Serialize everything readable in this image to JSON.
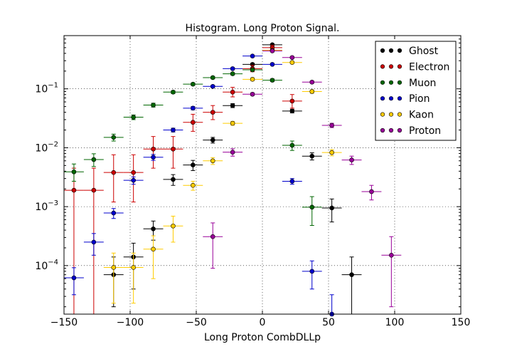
{
  "chart_data": {
    "type": "scatter",
    "title": "Histogram. Long Proton Signal.",
    "xlabel": "Long Proton CombDLLp",
    "ylabel": "",
    "xlim": [
      -150,
      150
    ],
    "ylim": [
      1.5e-05,
      0.8
    ],
    "yscale": "log",
    "grid": true,
    "legend_position": "top-right",
    "x_ticks": [
      {
        "value": -150,
        "label": "−150"
      },
      {
        "value": -100,
        "label": "−100"
      },
      {
        "value": -50,
        "label": "−50"
      },
      {
        "value": 0,
        "label": "0"
      },
      {
        "value": 50,
        "label": "50"
      },
      {
        "value": 100,
        "label": "100"
      },
      {
        "value": 150,
        "label": "150"
      }
    ],
    "y_ticks": [
      {
        "value": 0.0001,
        "base": "10",
        "exp": "−4"
      },
      {
        "value": 0.001,
        "base": "10",
        "exp": "−3"
      },
      {
        "value": 0.01,
        "base": "10",
        "exp": "−2"
      },
      {
        "value": 0.1,
        "base": "10",
        "exp": "−1"
      }
    ],
    "bin_half_width": 7.5,
    "series": [
      {
        "name": "Ghost",
        "color": "#000000",
        "x": [
          -112.5,
          -97.5,
          -82.5,
          -67.5,
          -52.5,
          -37.5,
          -22.5,
          -7.5,
          7.5,
          22.5,
          37.5,
          52.5,
          67.5
        ],
        "y": [
          7e-05,
          0.00014,
          0.00042,
          0.0029,
          0.0051,
          0.0135,
          0.052,
          0.26,
          0.56,
          0.042,
          0.0072,
          0.00095,
          7e-05
        ],
        "err_low": [
          5e-05,
          0.0001,
          0.00015,
          0.0006,
          0.001,
          0.0015,
          0.004,
          0.01,
          0.02,
          0.003,
          0.001,
          0.0004,
          6e-05
        ],
        "err_high": [
          7e-05,
          0.0001,
          0.00015,
          0.0006,
          0.001,
          0.0015,
          0.004,
          0.01,
          0.02,
          0.003,
          0.001,
          0.0004,
          7e-05
        ]
      },
      {
        "name": "Electron",
        "color": "#cc0000",
        "x": [
          -142.5,
          -127.5,
          -112.5,
          -97.5,
          -82.5,
          -67.5,
          -52.5,
          -37.5,
          -22.5,
          -7.5,
          7.5,
          22.5
        ],
        "y": [
          0.0019,
          0.0019,
          0.0038,
          0.0038,
          0.0095,
          0.0095,
          0.027,
          0.04,
          0.088,
          0.22,
          0.5,
          0.062
        ],
        "err_low": [
          0.00189,
          0.00189,
          0.0026,
          0.0026,
          0.005,
          0.005,
          0.008,
          0.01,
          0.015,
          0.025,
          0.04,
          0.015
        ],
        "err_high": [
          0.0026,
          0.0026,
          0.0038,
          0.0038,
          0.006,
          0.006,
          0.01,
          0.012,
          0.018,
          0.03,
          0.05,
          0.018
        ]
      },
      {
        "name": "Muon",
        "color": "#006600",
        "x": [
          -142.5,
          -127.5,
          -112.5,
          -97.5,
          -82.5,
          -67.5,
          -52.5,
          -37.5,
          -22.5,
          -7.5,
          7.5,
          22.5,
          37.5
        ],
        "y": [
          0.0039,
          0.0063,
          0.015,
          0.033,
          0.053,
          0.088,
          0.12,
          0.155,
          0.18,
          0.21,
          0.14,
          0.011,
          0.00098
        ],
        "err_low": [
          0.0012,
          0.0015,
          0.002,
          0.003,
          0.004,
          0.005,
          0.006,
          0.007,
          0.008,
          0.008,
          0.007,
          0.002,
          0.0005
        ],
        "err_high": [
          0.0014,
          0.0016,
          0.002,
          0.003,
          0.004,
          0.005,
          0.006,
          0.007,
          0.008,
          0.008,
          0.007,
          0.002,
          0.0005
        ]
      },
      {
        "name": "Pion",
        "color": "#0000cc",
        "x": [
          -142.5,
          -127.5,
          -112.5,
          -97.5,
          -82.5,
          -67.5,
          -52.5,
          -37.5,
          -22.5,
          -7.5,
          7.5,
          22.5,
          37.5,
          52.5
        ],
        "y": [
          6.2e-05,
          0.00025,
          0.00078,
          0.0028,
          0.0069,
          0.02,
          0.047,
          0.11,
          0.22,
          0.36,
          0.26,
          0.0027,
          8e-05,
          1.5e-05
        ],
        "err_low": [
          3e-05,
          0.0001,
          0.00015,
          0.0004,
          0.0008,
          0.0015,
          0.003,
          0.005,
          0.008,
          0.01,
          0.008,
          0.0003,
          4e-05,
          1.4e-05
        ],
        "err_high": [
          3e-05,
          0.0001,
          0.00015,
          0.0004,
          0.0008,
          0.0015,
          0.003,
          0.005,
          0.008,
          0.01,
          0.008,
          0.0003,
          4e-05,
          1.7e-05
        ]
      },
      {
        "name": "Kaon",
        "color": "#ffcc00",
        "x": [
          -112.5,
          -97.5,
          -82.5,
          -67.5,
          -52.5,
          -37.5,
          -22.5,
          -7.5,
          7.5,
          22.5,
          37.5,
          52.5
        ],
        "y": [
          9.3e-05,
          9.3e-05,
          0.00019,
          0.00047,
          0.0023,
          0.006,
          0.026,
          0.145,
          0.45,
          0.28,
          0.09,
          0.0083
        ],
        "err_low": [
          7e-05,
          7e-05,
          0.00013,
          0.00022,
          0.0004,
          0.0008,
          0.002,
          0.008,
          0.02,
          0.012,
          0.006,
          0.001
        ],
        "err_high": [
          7e-05,
          7e-05,
          0.00013,
          0.00022,
          0.0004,
          0.0008,
          0.002,
          0.008,
          0.02,
          0.012,
          0.006,
          0.001
        ]
      },
      {
        "name": "Proton",
        "color": "#990099",
        "x": [
          -37.5,
          -22.5,
          -7.5,
          7.5,
          22.5,
          37.5,
          52.5,
          67.5,
          82.5,
          97.5
        ],
        "y": [
          0.00031,
          0.0084,
          0.081,
          0.44,
          0.34,
          0.13,
          0.024,
          0.0062,
          0.0018,
          0.00015
        ],
        "err_low": [
          0.00022,
          0.0012,
          0.004,
          0.01,
          0.009,
          0.006,
          0.002,
          0.001,
          0.0005,
          0.00013
        ],
        "err_high": [
          0.00022,
          0.0012,
          0.004,
          0.01,
          0.009,
          0.006,
          0.002,
          0.001,
          0.0005,
          0.00016
        ]
      }
    ]
  }
}
